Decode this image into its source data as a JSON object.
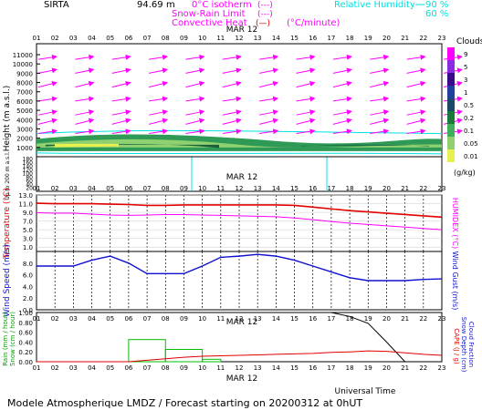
{
  "header": {
    "station": "SIRTA",
    "altitude": "94.69",
    "altitude_unit": "m",
    "legend_iso": "0°C isotherm",
    "legend_iso_mark": "(---)",
    "legend_snow": "Snow-Rain Limit",
    "legend_snow_mark": "(---)",
    "legend_conv": "Convective Heat",
    "legend_conv_mark": "(—)",
    "legend_conv_unit": "(°C/minute)",
    "legend_rh": "Relative Humidity",
    "rh_values": [
      "90 %",
      "60 %"
    ]
  },
  "footer": {
    "universal_time": "Universal Time",
    "forecast": "Modele Atmospherique LMDZ / Forecast starting on 20200312 at 0hUT"
  },
  "colors": {
    "magenta": "#ff00ff",
    "red": "#e00000",
    "blue": "#1010d0",
    "green": "#00d000",
    "cyan": "#00e0e0",
    "dark_green": "#1a7a3a",
    "purple_rain_label": "#00a000"
  },
  "chart_data": [
    {
      "type": "heatmap",
      "name": "clouds",
      "date_label": "MAR 12",
      "x": [
        "01",
        "02",
        "03",
        "04",
        "05",
        "06",
        "07",
        "08",
        "09",
        "10",
        "11",
        "12",
        "13",
        "14",
        "15",
        "16",
        "17",
        "18",
        "19",
        "20",
        "21",
        "22",
        "23"
      ],
      "ylabel": "Height (m a.s.l.)",
      "ylabel_low": "Up to 200 m a.s.l.",
      "yticks_high": [
        1000,
        2000,
        3000,
        4000,
        5000,
        6000,
        7000,
        8000,
        9000,
        10000,
        11000
      ],
      "yticks_low": [
        20,
        40,
        60,
        80,
        100,
        120,
        140,
        160,
        180
      ],
      "colorbar_title": "Clouds",
      "colorbar_ticks": [
        "9",
        "5",
        "3",
        "1",
        "0.5",
        "0.2",
        "0.1",
        "0.05",
        "0.01"
      ],
      "colorbar_unit": "(g/kg)",
      "cloud_band_height_m": [
        600,
        2300
      ],
      "wind_arrows": "magenta",
      "humidity_contour": "cyan"
    },
    {
      "type": "line",
      "name": "temperature",
      "date_label": "MAR 12",
      "x": [
        "01",
        "02",
        "03",
        "04",
        "05",
        "06",
        "07",
        "08",
        "09",
        "10",
        "11",
        "12",
        "13",
        "14",
        "15",
        "16",
        "17",
        "18",
        "19",
        "20",
        "21",
        "22",
        "23"
      ],
      "ylabel": "Temperature (°C)",
      "ylabel_right": "HUMIDEX (°C)",
      "yticks": [
        1.0,
        3.0,
        5.0,
        7.0,
        9.0,
        11.0,
        13.0
      ],
      "ylim": [
        0,
        13
      ],
      "series": [
        {
          "name": "Temperature",
          "color": "#e00000",
          "values": [
            11.1,
            11.0,
            11.0,
            11.0,
            10.9,
            10.8,
            10.6,
            10.6,
            10.7,
            10.7,
            10.7,
            10.7,
            10.7,
            10.7,
            10.6,
            10.2,
            9.8,
            9.4,
            9.1,
            8.8,
            8.5,
            8.2,
            7.9
          ]
        },
        {
          "name": "HUMIDEX",
          "color": "#ff00ff",
          "values": [
            8.9,
            8.8,
            8.8,
            8.6,
            8.4,
            8.3,
            8.4,
            8.5,
            8.5,
            8.4,
            8.3,
            8.2,
            8.1,
            8.0,
            7.7,
            7.3,
            6.9,
            6.5,
            6.2,
            5.9,
            5.6,
            5.3,
            5.0
          ]
        }
      ]
    },
    {
      "type": "line",
      "name": "wind",
      "x": [
        "01",
        "02",
        "03",
        "04",
        "05",
        "06",
        "07",
        "08",
        "09",
        "10",
        "11",
        "12",
        "13",
        "14",
        "15",
        "16",
        "17",
        "18",
        "19",
        "20",
        "21",
        "22",
        "23"
      ],
      "ylabel": "Wind Speed (m/s)",
      "ylabel_right": "Wind Gust (m/s)",
      "yticks": [
        0.0,
        2.0,
        4.0,
        6.0,
        8.0
      ],
      "ylim": [
        0,
        10
      ],
      "series": [
        {
          "name": "Wind Speed",
          "color": "#1010d0",
          "values": [
            7.5,
            7.5,
            7.5,
            8.5,
            9.2,
            8.0,
            6.2,
            6.2,
            6.2,
            7.5,
            9.0,
            9.2,
            9.5,
            9.2,
            8.5,
            7.5,
            6.5,
            5.5,
            5.0,
            5.0,
            5.0,
            5.2,
            5.3
          ]
        }
      ]
    },
    {
      "type": "line",
      "name": "precipitation",
      "date_label": "MAR 12",
      "x": [
        "01",
        "02",
        "03",
        "04",
        "05",
        "06",
        "07",
        "08",
        "09",
        "10",
        "11",
        "12",
        "13",
        "14",
        "15",
        "16",
        "17",
        "18",
        "19",
        "20",
        "21",
        "22",
        "23"
      ],
      "ylabel_left": "Rain (mm / hour)",
      "ylabel_left2": "Snow (cm / hour)",
      "ylabel_right": "CAPE (J / g)",
      "ylabel_right2": "Snow Depth (cm)",
      "ylabel_right3": "Cloud Fraction",
      "yticks": [
        0.0,
        0.2,
        0.4,
        0.6,
        0.8,
        1.0
      ],
      "ylim": [
        0,
        1.0
      ],
      "rain_bars": [
        {
          "from": "06",
          "to": "08",
          "value": 0.45
        },
        {
          "from": "08",
          "to": "10",
          "value": 0.25
        },
        {
          "from": "10",
          "to": "11",
          "value": 0.05
        }
      ],
      "series": [
        {
          "name": "Cloud Fraction",
          "color": "#000000",
          "values": [
            1,
            1,
            1,
            1,
            1,
            1,
            1,
            1,
            1,
            1,
            1,
            1,
            1,
            1,
            1,
            1,
            1,
            0.92,
            0.78,
            0.4,
            0.0,
            0.0,
            0.0
          ]
        },
        {
          "name": "CAPE",
          "color": "#e00000",
          "values": [
            0,
            0,
            0,
            0,
            0,
            0,
            0.03,
            0.06,
            0.09,
            0.11,
            0.12,
            0.13,
            0.14,
            0.15,
            0.16,
            0.17,
            0.19,
            0.2,
            0.22,
            0.21,
            0.18,
            0.15,
            0.13
          ]
        }
      ]
    }
  ]
}
